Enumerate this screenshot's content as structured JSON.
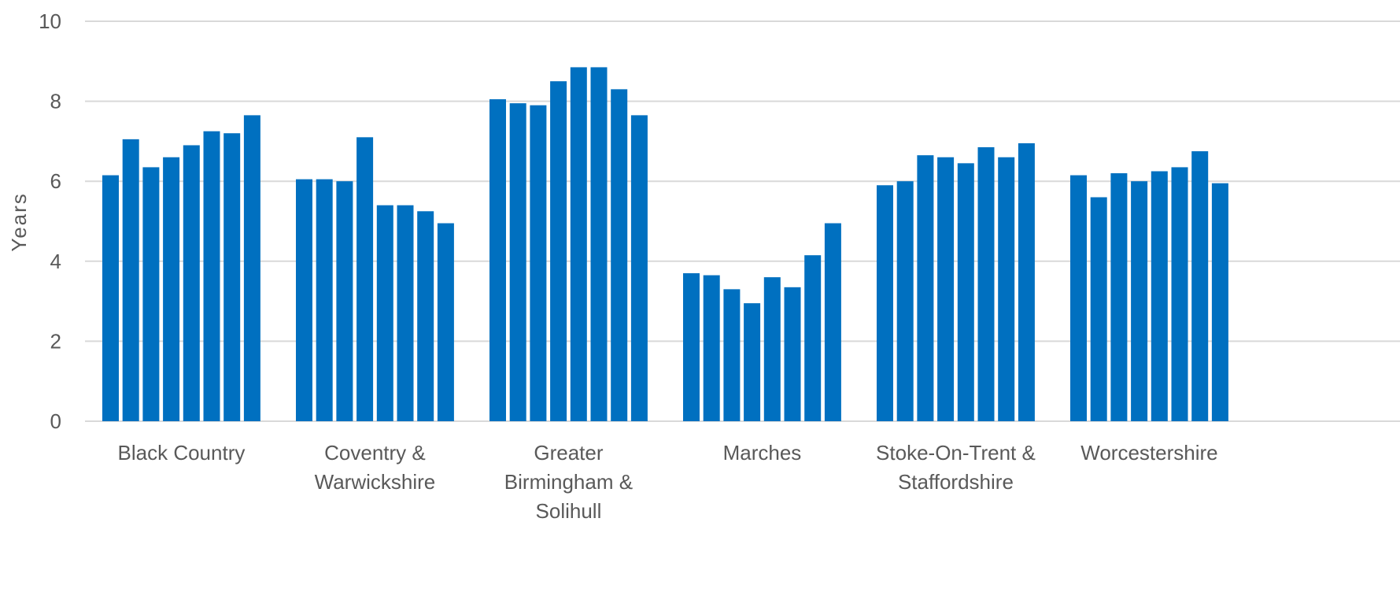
{
  "chart_data": {
    "type": "bar",
    "ylabel": "Years",
    "xlabel": "",
    "ylim": [
      0,
      10
    ],
    "yticks": [
      0,
      2,
      4,
      6,
      8,
      10
    ],
    "grid": true,
    "bar_color": "#0070C0",
    "categories": [
      [
        "Black Country"
      ],
      [
        "Coventry &",
        "Warwickshire"
      ],
      [
        "Greater",
        "Birmingham &",
        "Solihull"
      ],
      [
        "Marches"
      ],
      [
        "Stoke-On-Trent &",
        "Staffordshire"
      ],
      [
        "Worcestershire"
      ]
    ],
    "values": [
      [
        6.15,
        7.05,
        6.35,
        6.6,
        6.9,
        7.25,
        7.2,
        7.65
      ],
      [
        6.05,
        6.05,
        6.0,
        7.1,
        5.4,
        5.4,
        5.25,
        4.95
      ],
      [
        8.05,
        7.95,
        7.9,
        8.5,
        8.85,
        8.85,
        8.3,
        7.65
      ],
      [
        3.7,
        3.65,
        3.3,
        2.95,
        3.6,
        3.35,
        4.15,
        4.95
      ],
      [
        5.9,
        6.0,
        6.65,
        6.6,
        6.45,
        6.85,
        6.6,
        6.95
      ],
      [
        6.15,
        5.6,
        6.2,
        6.0,
        6.25,
        6.35,
        6.75,
        5.95
      ]
    ]
  }
}
